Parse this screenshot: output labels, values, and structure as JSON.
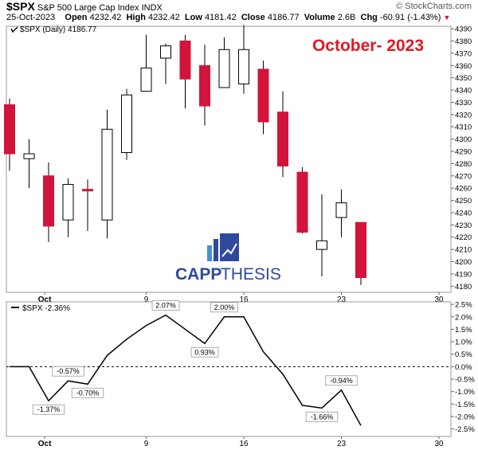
{
  "header": {
    "symbol": "$SPX",
    "name": "S&P 500 Large Cap Index",
    "exchange": "INDX",
    "watermark": "© StockCharts.com",
    "date": "25-Oct-2023",
    "open_label": "Open",
    "open": "4232.42",
    "high_label": "High",
    "high": "4232.42",
    "low_label": "Low",
    "low": "4181.42",
    "close_label": "Close",
    "close": "4186.77",
    "volume_label": "Volume",
    "volume": "2.6B",
    "chg_label": "Chg",
    "chg": "-60.91 (-1.43%)"
  },
  "colors": {
    "up": "#ffffff",
    "down": "#d2143a",
    "title": "#e01a22",
    "logo": "#2f4a9c",
    "logo_accent": "#4a8fd6"
  },
  "logo": {
    "text_left": "CAPP",
    "text_right": "THESIS"
  },
  "chart_data": [
    {
      "type": "candlestick",
      "title": "October- 2023",
      "legend": "$SPX (Daily) 4186.77",
      "ylim": [
        4175,
        4392
      ],
      "y_ticks": [
        4180,
        4190,
        4200,
        4210,
        4220,
        4230,
        4240,
        4250,
        4260,
        4270,
        4280,
        4290,
        4300,
        4310,
        4320,
        4330,
        4340,
        4350,
        4360,
        4370,
        4380,
        4390
      ],
      "x_tick_labels": [
        "Oct",
        "9",
        "16",
        "23",
        "30"
      ],
      "candles": [
        {
          "date": "2023-09-29",
          "open": 4328,
          "high": 4333,
          "low": 4274,
          "close": 4288
        },
        {
          "date": "2023-10-02",
          "open": 4284,
          "high": 4300,
          "low": 4260,
          "close": 4288
        },
        {
          "date": "2023-10-03",
          "open": 4270,
          "high": 4281,
          "low": 4216,
          "close": 4229
        },
        {
          "date": "2023-10-04",
          "open": 4234,
          "high": 4268,
          "low": 4220,
          "close": 4263
        },
        {
          "date": "2023-10-05",
          "open": 4259,
          "high": 4267,
          "low": 4225,
          "close": 4258
        },
        {
          "date": "2023-10-06",
          "open": 4234,
          "high": 4324,
          "low": 4219,
          "close": 4308
        },
        {
          "date": "2023-10-09",
          "open": 4289,
          "high": 4341,
          "low": 4283,
          "close": 4336
        },
        {
          "date": "2023-10-10",
          "open": 4339,
          "high": 4385,
          "low": 4339,
          "close": 4358
        },
        {
          "date": "2023-10-11",
          "open": 4366,
          "high": 4378,
          "low": 4345,
          "close": 4376
        },
        {
          "date": "2023-10-12",
          "open": 4380,
          "high": 4385,
          "low": 4325,
          "close": 4349
        },
        {
          "date": "2023-10-13",
          "open": 4360,
          "high": 4377,
          "low": 4311,
          "close": 4327
        },
        {
          "date": "2023-10-16",
          "open": 4342,
          "high": 4383,
          "low": 4342,
          "close": 4373
        },
        {
          "date": "2023-10-17",
          "open": 4345,
          "high": 4393,
          "low": 4337,
          "close": 4373
        },
        {
          "date": "2023-10-18",
          "open": 4357,
          "high": 4364,
          "low": 4304,
          "close": 4314
        },
        {
          "date": "2023-10-19",
          "open": 4322,
          "high": 4339,
          "low": 4269,
          "close": 4278
        },
        {
          "date": "2023-10-20",
          "open": 4273,
          "high": 4277,
          "low": 4223,
          "close": 4224
        },
        {
          "date": "2023-10-23",
          "open": 4210,
          "high": 4255,
          "low": 4188,
          "close": 4217
        },
        {
          "date": "2023-10-24",
          "open": 4236,
          "high": 4259,
          "low": 4220,
          "close": 4248
        },
        {
          "date": "2023-10-25",
          "open": 4232,
          "high": 4232,
          "low": 4181,
          "close": 4187
        }
      ]
    },
    {
      "type": "line",
      "legend": "$SPX -2.36%",
      "ylabel_unit": "%",
      "ylim": [
        -2.8,
        2.6
      ],
      "y_ticks": [
        2.5,
        2.0,
        1.5,
        1.0,
        0.5,
        0.0,
        -0.5,
        -1.0,
        -1.5,
        -2.0,
        -2.5
      ],
      "y_tick_labels": [
        "2.5%",
        "2.0%",
        "1.5%",
        "1.0%",
        "0.5%",
        "0.0%",
        "-0.5%",
        "-1.0%",
        "-1.5%",
        "-2.0%",
        "-2.5%"
      ],
      "x_tick_labels": [
        "Oct",
        "9",
        "16",
        "23",
        "30"
      ],
      "x": [
        "2023-09-29",
        "2023-10-02",
        "2023-10-03",
        "2023-10-04",
        "2023-10-05",
        "2023-10-06",
        "2023-10-09",
        "2023-10-10",
        "2023-10-11",
        "2023-10-12",
        "2023-10-13",
        "2023-10-16",
        "2023-10-17",
        "2023-10-18",
        "2023-10-19",
        "2023-10-20",
        "2023-10-23",
        "2023-10-24",
        "2023-10-25"
      ],
      "values": [
        0.0,
        0.0,
        -1.37,
        -0.57,
        -0.7,
        0.45,
        1.1,
        1.65,
        2.07,
        1.5,
        0.93,
        2.0,
        2.0,
        0.6,
        -0.3,
        -1.55,
        -1.66,
        -0.94,
        -2.36
      ],
      "annotations": [
        {
          "index": 2,
          "label": "-1.37%"
        },
        {
          "index": 3,
          "label": "-0.57%"
        },
        {
          "index": 4,
          "label": "-0.70%"
        },
        {
          "index": 8,
          "label": "2.07%"
        },
        {
          "index": 10,
          "label": "0.93%"
        },
        {
          "index": 11,
          "label": "2.00%"
        },
        {
          "index": 16,
          "label": "-1.66%"
        },
        {
          "index": 17,
          "label": "-0.94%"
        }
      ]
    }
  ]
}
